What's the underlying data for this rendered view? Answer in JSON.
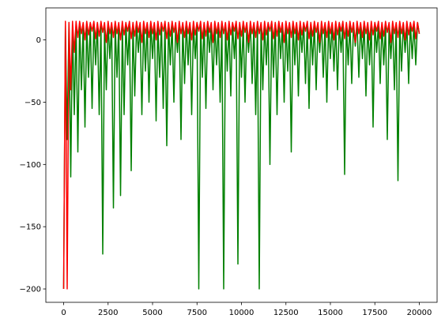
{
  "chart_data": {
    "type": "line",
    "x": [
      0,
      100,
      200,
      300,
      400,
      500,
      600,
      700,
      800,
      900,
      1000,
      1100,
      1200,
      1300,
      1400,
      1500,
      1600,
      1700,
      1800,
      1900,
      2000,
      2100,
      2200,
      2300,
      2400,
      2500,
      2600,
      2700,
      2800,
      2900,
      3000,
      3100,
      3200,
      3300,
      3400,
      3500,
      3600,
      3700,
      3800,
      3900,
      4000,
      4100,
      4200,
      4300,
      4400,
      4500,
      4600,
      4700,
      4800,
      4900,
      5000,
      5100,
      5200,
      5300,
      5400,
      5500,
      5600,
      5700,
      5800,
      5900,
      6000,
      6100,
      6200,
      6300,
      6400,
      6500,
      6600,
      6700,
      6800,
      6900,
      7000,
      7100,
      7200,
      7300,
      7400,
      7500,
      7600,
      7700,
      7800,
      7900,
      8000,
      8100,
      8200,
      8300,
      8400,
      8500,
      8600,
      8700,
      8800,
      8900,
      9000,
      9100,
      9200,
      9300,
      9400,
      9500,
      9600,
      9700,
      9800,
      9900,
      10000,
      10100,
      10200,
      10300,
      10400,
      10500,
      10600,
      10700,
      10800,
      10900,
      11000,
      11100,
      11200,
      11300,
      11400,
      11500,
      11600,
      11700,
      11800,
      11900,
      12000,
      12100,
      12200,
      12300,
      12400,
      12500,
      12600,
      12700,
      12800,
      12900,
      13000,
      13100,
      13200,
      13300,
      13400,
      13500,
      13600,
      13700,
      13800,
      13900,
      14000,
      14100,
      14200,
      14300,
      14400,
      14500,
      14600,
      14700,
      14800,
      14900,
      15000,
      15100,
      15200,
      15300,
      15400,
      15500,
      15600,
      15700,
      15800,
      15900,
      16000,
      16100,
      16200,
      16300,
      16400,
      16500,
      16600,
      16700,
      16800,
      16900,
      17000,
      17100,
      17200,
      17300,
      17400,
      17500,
      17600,
      17700,
      17800,
      17900,
      18000,
      18100,
      18200,
      18300,
      18400,
      18500,
      18600,
      18700,
      18800,
      18900,
      19000,
      19100,
      19200,
      19300,
      19400,
      19500,
      19600,
      19700,
      19800,
      19900,
      20000
    ],
    "series": [
      {
        "color": "#008000",
        "values": [
          -200,
          13,
          -80,
          14,
          -110,
          12,
          -60,
          13,
          -90,
          14,
          -40,
          13,
          -70,
          12,
          -30,
          14,
          -55,
          13,
          -20,
          14,
          -60,
          13,
          -172,
          12,
          -40,
          14,
          -15,
          13,
          -135,
          14,
          -30,
          13,
          -125,
          12,
          -60,
          14,
          -20,
          13,
          -105,
          14,
          -45,
          13,
          -10,
          12,
          -60,
          14,
          -25,
          13,
          -50,
          14,
          -15,
          13,
          -65,
          12,
          -30,
          14,
          -55,
          13,
          -85,
          14,
          -20,
          13,
          -50,
          12,
          -10,
          14,
          -80,
          13,
          -35,
          14,
          -20,
          13,
          -60,
          12,
          -15,
          14,
          -200,
          13,
          -30,
          14,
          -55,
          13,
          -10,
          12,
          -40,
          14,
          -20,
          13,
          -50,
          14,
          -200,
          13,
          -25,
          12,
          -45,
          14,
          -15,
          13,
          -180,
          14,
          -30,
          13,
          -50,
          12,
          -10,
          14,
          -35,
          13,
          -60,
          14,
          -200,
          13,
          -40,
          12,
          -20,
          14,
          -100,
          13,
          -30,
          14,
          -60,
          13,
          -15,
          12,
          -50,
          14,
          -25,
          13,
          -90,
          14,
          -20,
          13,
          -45,
          12,
          -10,
          14,
          -35,
          13,
          -55,
          14,
          -20,
          13,
          -40,
          12,
          -10,
          14,
          -30,
          13,
          -50,
          14,
          -15,
          13,
          -25,
          12,
          -40,
          14,
          -10,
          13,
          -108,
          14,
          -20,
          13,
          -35,
          12,
          -5,
          14,
          -30,
          13,
          -15,
          14,
          -45,
          13,
          -20,
          12,
          -70,
          14,
          -10,
          13,
          -35,
          14,
          -20,
          13,
          -80,
          12,
          -15,
          14,
          -40,
          13,
          -113,
          14,
          -25,
          13,
          -10,
          12,
          -35,
          14,
          -15,
          13,
          -20,
          14,
          5
        ]
      },
      {
        "color": "#ff0000",
        "values": [
          -200,
          15,
          -200,
          14,
          -40,
          15,
          -10,
          15,
          2,
          15,
          5,
          14,
          0,
          15,
          4,
          14,
          7,
          15,
          1,
          14,
          3,
          15,
          6,
          14,
          -2,
          15,
          5,
          14,
          2,
          15,
          5,
          14,
          0,
          15,
          4,
          14,
          7,
          15,
          1,
          14,
          3,
          15,
          6,
          14,
          -2,
          15,
          5,
          14,
          2,
          15,
          5,
          14,
          0,
          15,
          4,
          14,
          7,
          15,
          1,
          14,
          3,
          15,
          6,
          14,
          -2,
          15,
          5,
          14,
          2,
          15,
          5,
          14,
          0,
          15,
          4,
          14,
          7,
          15,
          1,
          14,
          3,
          15,
          6,
          14,
          -2,
          15,
          5,
          14,
          2,
          15,
          5,
          14,
          0,
          15,
          4,
          14,
          7,
          15,
          1,
          14,
          3,
          15,
          6,
          14,
          -2,
          15,
          5,
          14,
          2,
          15,
          5,
          14,
          0,
          15,
          4,
          14,
          7,
          15,
          1,
          14,
          3,
          15,
          6,
          14,
          -2,
          15,
          5,
          14,
          2,
          15,
          5,
          14,
          0,
          15,
          4,
          14,
          7,
          15,
          1,
          14,
          3,
          15,
          6,
          14,
          -2,
          15,
          5,
          14,
          2,
          15,
          5,
          14,
          0,
          15,
          4,
          14,
          7,
          15,
          1,
          14,
          3,
          15,
          6,
          14,
          -2,
          15,
          5,
          14,
          2,
          15,
          5,
          14,
          0,
          15,
          4,
          14,
          7,
          15,
          1,
          14,
          3,
          15,
          6,
          14,
          -2,
          15,
          5,
          14,
          2,
          15,
          5,
          14,
          0,
          15,
          4,
          14,
          7,
          15,
          1,
          14,
          5
        ]
      }
    ],
    "xlim": [
      -1000,
      21000
    ],
    "ylim": [
      -210.75,
      25.75
    ],
    "xticks": [
      0,
      2500,
      5000,
      7500,
      10000,
      12500,
      15000,
      17500,
      20000
    ],
    "yticks": [
      {
        "value": -200,
        "label": "−200"
      },
      {
        "value": -150,
        "label": "−150"
      },
      {
        "value": -100,
        "label": "−100"
      },
      {
        "value": -50,
        "label": "−50"
      },
      0
    ]
  }
}
